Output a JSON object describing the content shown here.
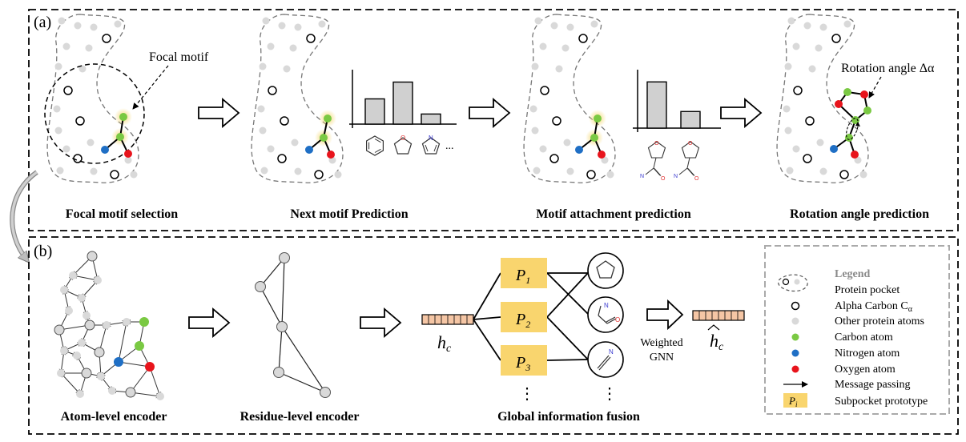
{
  "panel_a": {
    "tag": "(a)",
    "steps": [
      "Focal motif selection",
      "Next motif Prediction",
      "Motif attachment prediction",
      "Rotation angle prediction"
    ],
    "focal_label": "Focal motif",
    "rotation_label": "Rotation angle Δα",
    "ellipsis": "...",
    "next_motif_bars": [
      0.45,
      0.75,
      0.18
    ],
    "attachment_bars": [
      0.78,
      0.28
    ]
  },
  "panel_b": {
    "tag": "(b)",
    "encoders": [
      "Atom-level encoder",
      "Residue-level encoder",
      "Global information fusion"
    ],
    "hc_main": "h",
    "hc_sub": "c",
    "prototypes": [
      {
        "main": "P",
        "sub": "1"
      },
      {
        "main": "P",
        "sub": "2"
      },
      {
        "main": "P",
        "sub": "3"
      }
    ],
    "dots": "⋮",
    "weighted": "Weighted",
    "gnn": "GNN"
  },
  "legend": {
    "title": "Legend",
    "items": [
      "Protein pocket",
      "Alpha Carbon C",
      "Other protein atoms",
      "Carbon atom",
      "Nitrogen atom",
      "Oxygen atom",
      "Message passing",
      "Subpocket prototype"
    ],
    "alpha_sub": "α",
    "proto_main": "P",
    "proto_sub": "i"
  },
  "colors": {
    "carbon": "#7ac943",
    "nitrogen": "#1f6fc5",
    "oxygen": "#e8141c",
    "grey_atom": "#d9d9d9",
    "prototype": "#f9d56e",
    "embedding": "#f5c6a5",
    "nitrogen_text": "#3a3ad0",
    "oxygen_text": "#e03030"
  }
}
